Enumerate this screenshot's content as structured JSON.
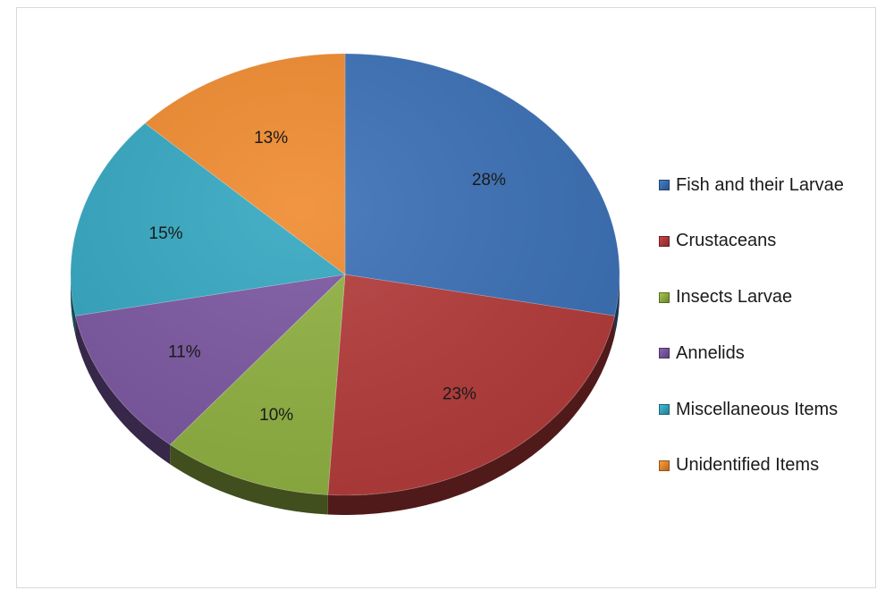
{
  "chart_data": {
    "type": "pie",
    "title": "",
    "categories": [
      "Fish and their Larvae",
      "Crustaceans",
      "Insects Larvae",
      "Annelids",
      "Miscellaneous Items",
      "Unidentified Items"
    ],
    "values": [
      28,
      23,
      10,
      11,
      15,
      13
    ],
    "data_labels": [
      "28%",
      "23%",
      "10%",
      "11%",
      "15%",
      "13%"
    ],
    "colors": [
      "#3a6fb5",
      "#b33a3a",
      "#8fb040",
      "#7a56a0",
      "#33a6c0",
      "#ef8a2e"
    ],
    "legend_position": "right",
    "start_angle": "12 o'clock",
    "direction": "clockwise",
    "style": "3d-tilted"
  }
}
